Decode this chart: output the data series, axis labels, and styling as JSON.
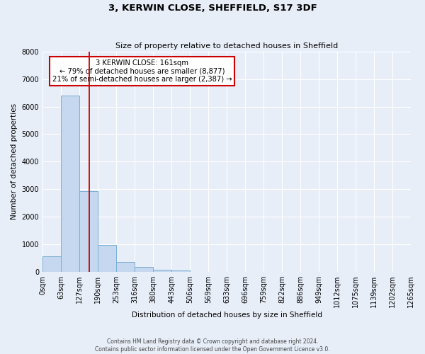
{
  "title": "3, KERWIN CLOSE, SHEFFIELD, S17 3DF",
  "subtitle": "Size of property relative to detached houses in Sheffield",
  "xlabel": "Distribution of detached houses by size in Sheffield",
  "ylabel": "Number of detached properties",
  "bar_color": "#c5d8f0",
  "bar_edge_color": "#7bafd4",
  "background_color": "#e8eef8",
  "fig_background_color": "#e8eef8",
  "grid_color": "#ffffff",
  "bin_edges": [
    0,
    63,
    127,
    190,
    253,
    316,
    380,
    443,
    506,
    569,
    633,
    696,
    759,
    822,
    886,
    949,
    1012,
    1075,
    1139,
    1202,
    1265
  ],
  "bin_labels": [
    "0sqm",
    "63sqm",
    "127sqm",
    "190sqm",
    "253sqm",
    "316sqm",
    "380sqm",
    "443sqm",
    "506sqm",
    "569sqm",
    "633sqm",
    "696sqm",
    "759sqm",
    "822sqm",
    "886sqm",
    "949sqm",
    "1012sqm",
    "1075sqm",
    "1139sqm",
    "1202sqm",
    "1265sqm"
  ],
  "bar_heights": [
    560,
    6400,
    2930,
    970,
    370,
    170,
    80,
    50,
    0,
    0,
    0,
    0,
    0,
    0,
    0,
    0,
    0,
    0,
    0,
    0
  ],
  "ylim": [
    0,
    8000
  ],
  "yticks": [
    0,
    1000,
    2000,
    3000,
    4000,
    5000,
    6000,
    7000,
    8000
  ],
  "vline_x": 161,
  "vline_color": "#cc0000",
  "annotation_title": "3 KERWIN CLOSE: 161sqm",
  "annotation_line1": "← 79% of detached houses are smaller (8,877)",
  "annotation_line2": "21% of semi-detached houses are larger (2,387) →",
  "annotation_box_color": "#ffffff",
  "annotation_box_edge": "#cc0000",
  "footer_line1": "Contains HM Land Registry data © Crown copyright and database right 2024.",
  "footer_line2": "Contains public sector information licensed under the Open Government Licence v3.0."
}
